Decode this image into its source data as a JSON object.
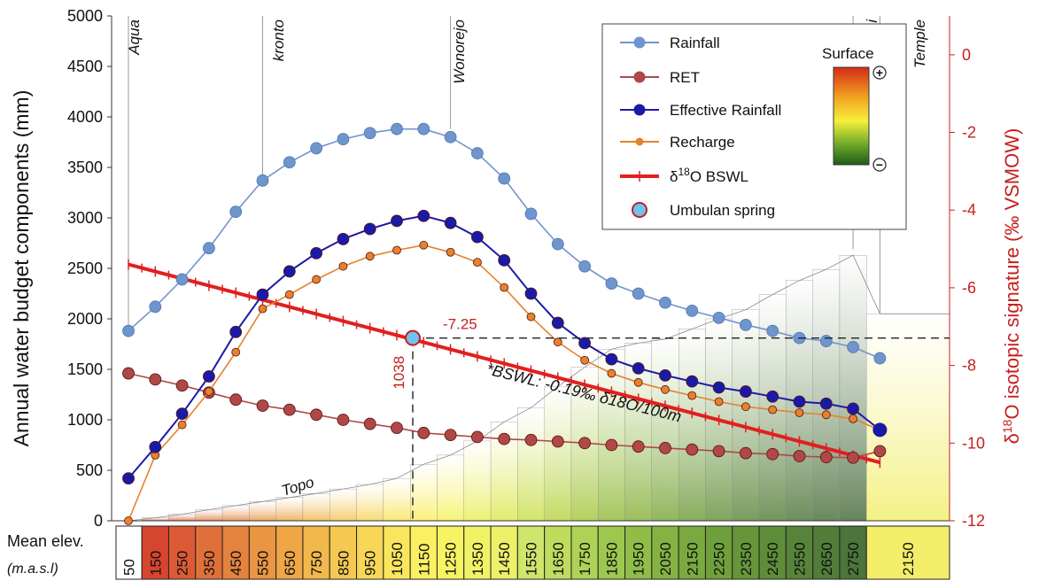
{
  "chart_data": {
    "type": "line",
    "ylabel_left": "Annual water budget components (mm)",
    "ylabel_right_prefix": "δ",
    "ylabel_right_sup": "18",
    "ylabel_right_suffix": "O isotopic signature (‰ VSMOW)",
    "ylim_left": [
      0,
      5000
    ],
    "ylim_right": [
      -12,
      1
    ],
    "yticks_left": [
      0,
      500,
      1000,
      1500,
      2000,
      2500,
      3000,
      3500,
      4000,
      4500,
      5000
    ],
    "yticks_right": [
      0,
      -2,
      -4,
      -6,
      -8,
      -10,
      -12
    ],
    "x_row_label": "Mean elev.",
    "x_row_unit": "(m.a.s.l)",
    "categories": [
      "50",
      "150",
      "250",
      "350",
      "450",
      "550",
      "650",
      "750",
      "850",
      "950",
      "1050",
      "1150",
      "1250",
      "1350",
      "1450",
      "1550",
      "1650",
      "1750",
      "1850",
      "1950",
      "2050",
      "2150",
      "2250",
      "2350",
      "2450",
      "2550",
      "2650",
      "2750",
      "2150"
    ],
    "series": [
      {
        "name": "Rainfall",
        "color": "#6f95cf",
        "marker": "circle",
        "values": [
          1880,
          2120,
          2390,
          2700,
          3060,
          3370,
          3550,
          3690,
          3780,
          3840,
          3880,
          3880,
          3800,
          3640,
          3390,
          3040,
          2740,
          2520,
          2350,
          2250,
          2160,
          2080,
          2010,
          1940,
          1880,
          1810,
          1780,
          1720,
          1610
        ]
      },
      {
        "name": "RET",
        "color": "#b04848",
        "marker": "circle",
        "values": [
          1460,
          1400,
          1340,
          1270,
          1200,
          1140,
          1100,
          1050,
          1000,
          960,
          920,
          870,
          850,
          830,
          810,
          800,
          785,
          770,
          750,
          735,
          720,
          705,
          690,
          670,
          660,
          640,
          630,
          625,
          690
        ]
      },
      {
        "name": "Effective Rainfall",
        "color": "#1a1aa8",
        "marker": "circle",
        "values": [
          420,
          730,
          1060,
          1430,
          1870,
          2240,
          2470,
          2650,
          2790,
          2890,
          2970,
          3020,
          2950,
          2810,
          2580,
          2250,
          1960,
          1760,
          1600,
          1510,
          1440,
          1380,
          1320,
          1280,
          1230,
          1180,
          1160,
          1110,
          900
        ]
      },
      {
        "name": "Recharge",
        "color": "#e5822e",
        "marker": "circle_small",
        "values": [
          0,
          650,
          950,
          1280,
          1670,
          2100,
          2240,
          2390,
          2520,
          2620,
          2680,
          2730,
          2660,
          2560,
          2310,
          2020,
          1770,
          1590,
          1460,
          1370,
          1300,
          1240,
          1180,
          1130,
          1100,
          1070,
          1050,
          1010,
          900
        ]
      }
    ],
    "isotope_series": {
      "name_prefix": "δ",
      "name_sup": "18",
      "name_suffix": "O BSWL",
      "color": "#e02020",
      "start": -5.4,
      "end": -10.5
    },
    "legend_extra": "Umbulan spring",
    "spring": {
      "elevation": "1038",
      "isotope": "-7.25",
      "value_mm": 1810
    },
    "annotation_bswl": "*BSWL: -0.19‰ δ18O/100m",
    "topo_label": "Topo",
    "locations": [
      "Aqua",
      "kronto",
      "Wonorejo",
      "Seruni",
      "Temple"
    ],
    "surface_legend": {
      "title": "Surface",
      "plus": "+",
      "minus": "−"
    }
  }
}
